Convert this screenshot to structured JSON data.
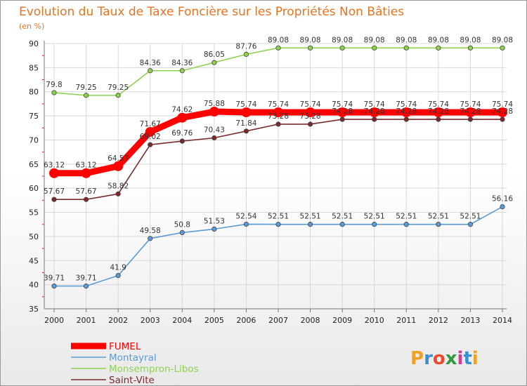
{
  "title": "Evolution du Taux de Taxe Foncière sur les Propriétés Non Bâties",
  "unit": "(en %)",
  "logo": {
    "letters": [
      "P",
      "r",
      "o",
      "x",
      "i",
      "t",
      "i"
    ],
    "colors": [
      "#f0a020",
      "#3a8fd0",
      "#e84a2a",
      "#2e9b3e",
      "#d83b8f",
      "#3a8fd0",
      "#f0a020"
    ]
  },
  "chart_data": {
    "type": "line",
    "x": [
      2000,
      2001,
      2002,
      2003,
      2004,
      2005,
      2006,
      2007,
      2008,
      2009,
      2010,
      2011,
      2012,
      2013,
      2014
    ],
    "ylim": [
      35,
      90
    ],
    "yticks": [
      35,
      40,
      45,
      50,
      55,
      60,
      65,
      70,
      75,
      80,
      85,
      90
    ],
    "grid": true,
    "legend_position": "bottom-left",
    "series": [
      {
        "name": "FUMEL",
        "color": "#ff0000",
        "values": [
          63.12,
          63.12,
          64.57,
          71.67,
          74.62,
          75.88,
          75.74,
          75.74,
          75.74,
          75.74,
          75.74,
          75.74,
          75.74,
          75.74,
          75.74
        ]
      },
      {
        "name": "Montayral",
        "color": "#5b9bd5",
        "values": [
          39.71,
          39.71,
          41.9,
          49.58,
          50.8,
          51.53,
          52.54,
          52.51,
          52.51,
          52.51,
          52.51,
          52.51,
          52.51,
          52.51,
          56.16
        ]
      },
      {
        "name": "Monsempron-Libos",
        "color": "#8fd14f",
        "values": [
          79.8,
          79.25,
          79.25,
          84.36,
          84.36,
          86.05,
          87.76,
          89.08,
          89.08,
          89.08,
          89.08,
          89.08,
          89.08,
          89.08,
          89.08
        ]
      },
      {
        "name": "Saint-Vite",
        "color": "#7a2a2a",
        "values": [
          57.67,
          57.67,
          58.82,
          69.02,
          69.76,
          70.43,
          71.84,
          73.28,
          73.28,
          74.28,
          74.28,
          74.28,
          74.28,
          74.28,
          74.28
        ]
      }
    ]
  }
}
